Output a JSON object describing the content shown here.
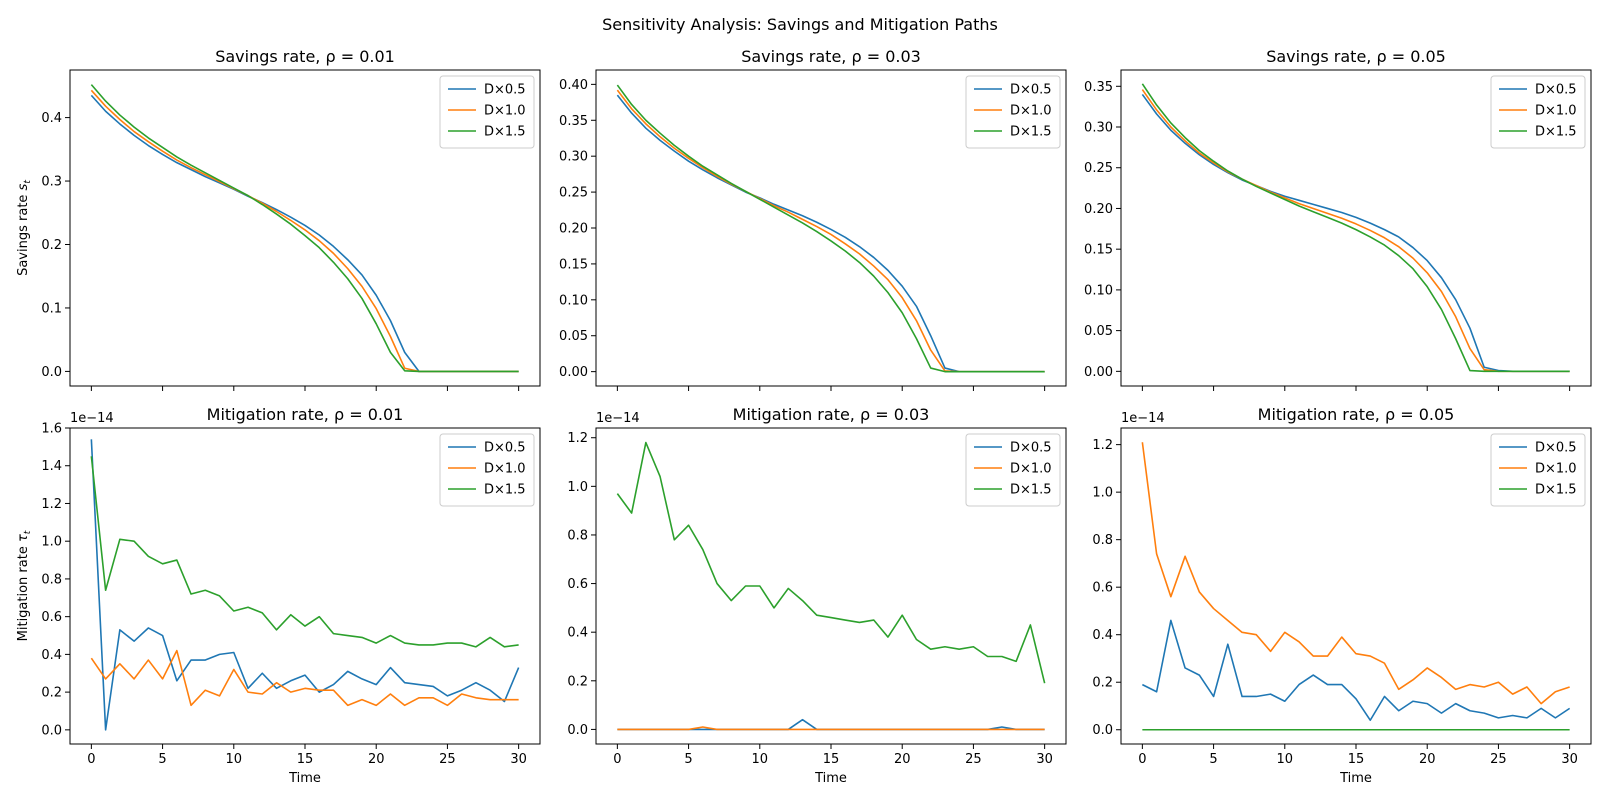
{
  "figure": {
    "title": "Sensitivity Analysis: Savings and Mitigation Paths"
  },
  "colors": {
    "D×0.5": "#1f77b4",
    "D×1.0": "#ff7f0e",
    "D×1.5": "#2ca02c"
  },
  "chart_data": [
    {
      "type": "line",
      "title": "Savings rate, ρ = 0.01",
      "xlabel": "",
      "ylabel": "Savings rate s_t",
      "xlim": [
        -1.5,
        31.5
      ],
      "ylim": [
        -0.023,
        0.475
      ],
      "xticks": [
        0,
        5,
        10,
        15,
        20,
        25,
        30
      ],
      "show_xtick_labels": false,
      "yticks": [
        0.0,
        0.1,
        0.2,
        0.3,
        0.4
      ],
      "ytick_labels": [
        "0.0",
        "0.1",
        "0.2",
        "0.3",
        "0.4"
      ],
      "offset_text": "",
      "legend": "upper right",
      "grid": false,
      "x": [
        0,
        1,
        2,
        3,
        4,
        5,
        6,
        7,
        8,
        9,
        10,
        11,
        12,
        13,
        14,
        15,
        16,
        17,
        18,
        19,
        20,
        21,
        22,
        23,
        24,
        25,
        26,
        27,
        28,
        29,
        30
      ],
      "series": [
        {
          "name": "D×0.5",
          "values": [
            0.435,
            0.41,
            0.39,
            0.372,
            0.356,
            0.342,
            0.329,
            0.318,
            0.307,
            0.297,
            0.287,
            0.276,
            0.266,
            0.255,
            0.243,
            0.23,
            0.215,
            0.197,
            0.176,
            0.152,
            0.12,
            0.08,
            0.03,
            0.0,
            0.0,
            0.0,
            0.0,
            0.0,
            0.0,
            0.0,
            0.0
          ]
        },
        {
          "name": "D×1.0",
          "values": [
            0.443,
            0.418,
            0.397,
            0.378,
            0.362,
            0.347,
            0.333,
            0.321,
            0.31,
            0.299,
            0.288,
            0.277,
            0.265,
            0.252,
            0.238,
            0.223,
            0.206,
            0.186,
            0.162,
            0.134,
            0.099,
            0.055,
            0.005,
            0.0,
            0.0,
            0.0,
            0.0,
            0.0,
            0.0,
            0.0,
            0.0
          ]
        },
        {
          "name": "D×1.5",
          "values": [
            0.452,
            0.426,
            0.404,
            0.385,
            0.368,
            0.353,
            0.338,
            0.325,
            0.313,
            0.301,
            0.289,
            0.277,
            0.263,
            0.248,
            0.232,
            0.214,
            0.195,
            0.172,
            0.146,
            0.115,
            0.075,
            0.03,
            0.001,
            0.0,
            0.0,
            0.0,
            0.0,
            0.0,
            0.0,
            0.0,
            0.0
          ]
        }
      ]
    },
    {
      "type": "line",
      "title": "Savings rate, ρ = 0.03",
      "xlabel": "",
      "ylabel": "",
      "xlim": [
        -1.5,
        31.5
      ],
      "ylim": [
        -0.02,
        0.42
      ],
      "xticks": [
        0,
        5,
        10,
        15,
        20,
        25,
        30
      ],
      "show_xtick_labels": false,
      "yticks": [
        0.0,
        0.05,
        0.1,
        0.15,
        0.2,
        0.25,
        0.3,
        0.35,
        0.4
      ],
      "ytick_labels": [
        "0.00",
        "0.05",
        "0.10",
        "0.15",
        "0.20",
        "0.25",
        "0.30",
        "0.35",
        "0.40"
      ],
      "offset_text": "",
      "legend": "upper right",
      "grid": false,
      "x": [
        0,
        1,
        2,
        3,
        4,
        5,
        6,
        7,
        8,
        9,
        10,
        11,
        12,
        13,
        14,
        15,
        16,
        17,
        18,
        19,
        20,
        21,
        22,
        23,
        24,
        25,
        26,
        27,
        28,
        29,
        30
      ],
      "series": [
        {
          "name": "D×0.5",
          "values": [
            0.385,
            0.36,
            0.339,
            0.322,
            0.307,
            0.293,
            0.281,
            0.27,
            0.26,
            0.25,
            0.242,
            0.233,
            0.225,
            0.217,
            0.208,
            0.198,
            0.187,
            0.174,
            0.159,
            0.141,
            0.119,
            0.091,
            0.05,
            0.005,
            0.0,
            0.0,
            0.0,
            0.0,
            0.0,
            0.0,
            0.0
          ]
        },
        {
          "name": "D×1.0",
          "values": [
            0.392,
            0.366,
            0.345,
            0.327,
            0.311,
            0.297,
            0.284,
            0.272,
            0.261,
            0.251,
            0.241,
            0.231,
            0.222,
            0.212,
            0.202,
            0.191,
            0.178,
            0.164,
            0.147,
            0.128,
            0.103,
            0.071,
            0.03,
            0.001,
            0.0,
            0.0,
            0.0,
            0.0,
            0.0,
            0.0,
            0.0
          ]
        },
        {
          "name": "D×1.5",
          "values": [
            0.399,
            0.372,
            0.35,
            0.332,
            0.315,
            0.3,
            0.286,
            0.274,
            0.262,
            0.251,
            0.24,
            0.229,
            0.218,
            0.207,
            0.195,
            0.182,
            0.168,
            0.152,
            0.133,
            0.11,
            0.082,
            0.046,
            0.005,
            0.0,
            0.0,
            0.0,
            0.0,
            0.0,
            0.0,
            0.0,
            0.0
          ]
        }
      ]
    },
    {
      "type": "line",
      "title": "Savings rate, ρ = 0.05",
      "xlabel": "",
      "ylabel": "",
      "xlim": [
        -1.5,
        31.5
      ],
      "ylim": [
        -0.018,
        0.37
      ],
      "xticks": [
        0,
        5,
        10,
        15,
        20,
        25,
        30
      ],
      "show_xtick_labels": false,
      "yticks": [
        0.0,
        0.05,
        0.1,
        0.15,
        0.2,
        0.25,
        0.3,
        0.35
      ],
      "ytick_labels": [
        "0.00",
        "0.05",
        "0.10",
        "0.15",
        "0.20",
        "0.25",
        "0.30",
        "0.35"
      ],
      "offset_text": "",
      "legend": "upper right",
      "grid": false,
      "x": [
        0,
        1,
        2,
        3,
        4,
        5,
        6,
        7,
        8,
        9,
        10,
        11,
        12,
        13,
        14,
        15,
        16,
        17,
        18,
        19,
        20,
        21,
        22,
        23,
        24,
        25,
        26,
        27,
        28,
        29,
        30
      ],
      "series": [
        {
          "name": "D×0.5",
          "values": [
            0.34,
            0.316,
            0.296,
            0.28,
            0.266,
            0.254,
            0.244,
            0.235,
            0.228,
            0.221,
            0.215,
            0.21,
            0.205,
            0.2,
            0.195,
            0.189,
            0.182,
            0.174,
            0.165,
            0.152,
            0.136,
            0.115,
            0.088,
            0.053,
            0.005,
            0.001,
            0.0,
            0.0,
            0.0,
            0.0,
            0.0
          ]
        },
        {
          "name": "D×1.0",
          "values": [
            0.346,
            0.321,
            0.3,
            0.283,
            0.268,
            0.256,
            0.245,
            0.236,
            0.228,
            0.22,
            0.213,
            0.206,
            0.2,
            0.194,
            0.188,
            0.181,
            0.173,
            0.164,
            0.153,
            0.139,
            0.121,
            0.098,
            0.067,
            0.028,
            0.002,
            0.0,
            0.0,
            0.0,
            0.0,
            0.0,
            0.0
          ]
        },
        {
          "name": "D×1.5",
          "values": [
            0.353,
            0.327,
            0.305,
            0.287,
            0.271,
            0.258,
            0.246,
            0.236,
            0.227,
            0.219,
            0.211,
            0.203,
            0.196,
            0.189,
            0.182,
            0.174,
            0.165,
            0.155,
            0.142,
            0.126,
            0.104,
            0.076,
            0.04,
            0.001,
            0.0,
            0.0,
            0.0,
            0.0,
            0.0,
            0.0,
            0.0
          ]
        }
      ]
    },
    {
      "type": "line",
      "title": "Mitigation rate, ρ = 0.01",
      "xlabel": "Time",
      "ylabel": "Mitigation rate τ_t",
      "xlim": [
        -1.5,
        31.5
      ],
      "ylim": [
        -0.075,
        1.6
      ],
      "xticks": [
        0,
        5,
        10,
        15,
        20,
        25,
        30
      ],
      "show_xtick_labels": true,
      "yticks": [
        0.0,
        0.2,
        0.4,
        0.6,
        0.8,
        1.0,
        1.2,
        1.4,
        1.6
      ],
      "ytick_labels": [
        "0.0",
        "0.2",
        "0.4",
        "0.6",
        "0.8",
        "1.0",
        "1.2",
        "1.4",
        "1.6"
      ],
      "offset_text": "1e−14",
      "legend": "upper right",
      "grid": false,
      "x": [
        0,
        1,
        2,
        3,
        4,
        5,
        6,
        7,
        8,
        9,
        10,
        11,
        12,
        13,
        14,
        15,
        16,
        17,
        18,
        19,
        20,
        21,
        22,
        23,
        24,
        25,
        26,
        27,
        28,
        29,
        30
      ],
      "series": [
        {
          "name": "D×0.5",
          "values": [
            1.54,
            0.0,
            0.53,
            0.47,
            0.54,
            0.5,
            0.26,
            0.37,
            0.37,
            0.4,
            0.41,
            0.22,
            0.3,
            0.22,
            0.26,
            0.29,
            0.2,
            0.24,
            0.31,
            0.27,
            0.24,
            0.33,
            0.25,
            0.24,
            0.23,
            0.18,
            0.21,
            0.25,
            0.21,
            0.15,
            0.33
          ]
        },
        {
          "name": "D×1.0",
          "values": [
            0.38,
            0.27,
            0.35,
            0.27,
            0.37,
            0.27,
            0.42,
            0.13,
            0.21,
            0.18,
            0.32,
            0.2,
            0.19,
            0.25,
            0.2,
            0.22,
            0.21,
            0.21,
            0.13,
            0.16,
            0.13,
            0.19,
            0.13,
            0.17,
            0.17,
            0.13,
            0.19,
            0.17,
            0.16,
            0.16,
            0.16
          ]
        },
        {
          "name": "D×1.5",
          "values": [
            1.45,
            0.74,
            1.01,
            1.0,
            0.92,
            0.88,
            0.9,
            0.72,
            0.74,
            0.71,
            0.63,
            0.65,
            0.62,
            0.53,
            0.61,
            0.55,
            0.6,
            0.51,
            0.5,
            0.49,
            0.46,
            0.5,
            0.46,
            0.45,
            0.45,
            0.46,
            0.46,
            0.44,
            0.49,
            0.44,
            0.45
          ]
        }
      ]
    },
    {
      "type": "line",
      "title": "Mitigation rate, ρ = 0.03",
      "xlabel": "Time",
      "ylabel": "",
      "xlim": [
        -1.5,
        31.5
      ],
      "ylim": [
        -0.06,
        1.24
      ],
      "xticks": [
        0,
        5,
        10,
        15,
        20,
        25,
        30
      ],
      "show_xtick_labels": true,
      "yticks": [
        0.0,
        0.2,
        0.4,
        0.6,
        0.8,
        1.0,
        1.2
      ],
      "ytick_labels": [
        "0.0",
        "0.2",
        "0.4",
        "0.6",
        "0.8",
        "1.0",
        "1.2"
      ],
      "offset_text": "1e−14",
      "legend": "upper right",
      "grid": false,
      "x": [
        0,
        1,
        2,
        3,
        4,
        5,
        6,
        7,
        8,
        9,
        10,
        11,
        12,
        13,
        14,
        15,
        16,
        17,
        18,
        19,
        20,
        21,
        22,
        23,
        24,
        25,
        26,
        27,
        28,
        29,
        30
      ],
      "series": [
        {
          "name": "D×0.5",
          "values": [
            0,
            0,
            0,
            0,
            0,
            0,
            0,
            0,
            0,
            0,
            0,
            0,
            0,
            0.04,
            0,
            0,
            0,
            0,
            0,
            0,
            0,
            0,
            0,
            0,
            0,
            0,
            0,
            0.01,
            0,
            0,
            0
          ]
        },
        {
          "name": "D×1.0",
          "values": [
            0,
            0,
            0,
            0,
            0,
            0,
            0.01,
            0,
            0,
            0,
            0,
            0,
            0,
            0,
            0,
            0,
            0,
            0,
            0,
            0,
            0,
            0,
            0,
            0,
            0,
            0,
            0,
            0,
            0,
            0,
            0
          ]
        },
        {
          "name": "D×1.5",
          "values": [
            0.97,
            0.89,
            1.18,
            1.04,
            0.78,
            0.84,
            0.74,
            0.6,
            0.53,
            0.59,
            0.59,
            0.5,
            0.58,
            0.53,
            0.47,
            0.46,
            0.45,
            0.44,
            0.45,
            0.38,
            0.47,
            0.37,
            0.33,
            0.34,
            0.33,
            0.34,
            0.3,
            0.3,
            0.28,
            0.43,
            0.19
          ]
        }
      ]
    },
    {
      "type": "line",
      "title": "Mitigation rate, ρ = 0.05",
      "xlabel": "Time",
      "ylabel": "",
      "xlim": [
        -1.5,
        31.5
      ],
      "ylim": [
        -0.06,
        1.27
      ],
      "xticks": [
        0,
        5,
        10,
        15,
        20,
        25,
        30
      ],
      "show_xtick_labels": true,
      "yticks": [
        0.0,
        0.2,
        0.4,
        0.6,
        0.8,
        1.0,
        1.2
      ],
      "ytick_labels": [
        "0.0",
        "0.2",
        "0.4",
        "0.6",
        "0.8",
        "1.0",
        "1.2"
      ],
      "offset_text": "1e−14",
      "legend": "upper right",
      "grid": false,
      "x": [
        0,
        1,
        2,
        3,
        4,
        5,
        6,
        7,
        8,
        9,
        10,
        11,
        12,
        13,
        14,
        15,
        16,
        17,
        18,
        19,
        20,
        21,
        22,
        23,
        24,
        25,
        26,
        27,
        28,
        29,
        30
      ],
      "series": [
        {
          "name": "D×0.5",
          "values": [
            0.19,
            0.16,
            0.46,
            0.26,
            0.23,
            0.14,
            0.36,
            0.14,
            0.14,
            0.15,
            0.12,
            0.19,
            0.23,
            0.19,
            0.19,
            0.13,
            0.04,
            0.14,
            0.08,
            0.12,
            0.11,
            0.07,
            0.11,
            0.08,
            0.07,
            0.05,
            0.06,
            0.05,
            0.09,
            0.05,
            0.09
          ]
        },
        {
          "name": "D×1.0",
          "values": [
            1.21,
            0.74,
            0.56,
            0.73,
            0.58,
            0.51,
            0.46,
            0.41,
            0.4,
            0.33,
            0.41,
            0.37,
            0.31,
            0.31,
            0.39,
            0.32,
            0.31,
            0.28,
            0.17,
            0.21,
            0.26,
            0.22,
            0.17,
            0.19,
            0.18,
            0.2,
            0.15,
            0.18,
            0.11,
            0.16,
            0.18
          ]
        },
        {
          "name": "D×1.5",
          "values": [
            0,
            0,
            0,
            0,
            0,
            0,
            0,
            0,
            0,
            0,
            0,
            0,
            0,
            0,
            0,
            0,
            0,
            0,
            0,
            0,
            0,
            0,
            0,
            0,
            0,
            0,
            0,
            0,
            0,
            0,
            0
          ]
        }
      ]
    }
  ]
}
